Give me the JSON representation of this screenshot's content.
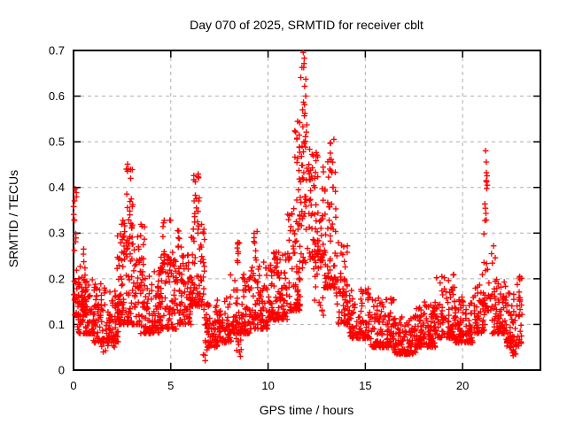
{
  "chart_data": {
    "type": "scatter",
    "title": "Day 070 of 2025, SRMTID for receiver cblt",
    "xlabel": "GPS time / hours",
    "ylabel": "SRMTID / TECUs",
    "xlim": [
      0,
      24
    ],
    "ylim": [
      0,
      0.7
    ],
    "xticks": [
      0,
      5,
      10,
      15,
      20
    ],
    "xtick_labels": [
      "0",
      "5",
      "10",
      "15",
      "20"
    ],
    "yticks": [
      0,
      0.1,
      0.2,
      0.3,
      0.4,
      0.5,
      0.6,
      0.7
    ],
    "ytick_labels": [
      "0",
      "0.1",
      "0.2",
      "0.3",
      "0.4",
      "0.5",
      "0.6",
      "0.7"
    ],
    "grid": "dashed",
    "grid_color": "#b0b0b0",
    "border_color": "#000000",
    "marker": "plus",
    "marker_color": "#ff0000",
    "data_x_range_hours": [
      0.0,
      23.0
    ],
    "notable_peaks": [
      {
        "x": 0.05,
        "y": 0.4
      },
      {
        "x": 2.9,
        "y": 0.46
      },
      {
        "x": 6.3,
        "y": 0.43
      },
      {
        "x": 11.8,
        "y": 0.7
      },
      {
        "x": 13.3,
        "y": 0.5
      },
      {
        "x": 19.5,
        "y": 0.21
      },
      {
        "x": 21.2,
        "y": 0.49
      }
    ],
    "seed": 70,
    "bands_format": "[x_start_hours, x_end_hours, n_points, y_min_TECUs, y_max_TECUs, skew(low=clustered toward y_min, uniform=even spread)]",
    "bands": [
      [
        0.0,
        0.15,
        12,
        0.26,
        0.4,
        "uniform"
      ],
      [
        0.0,
        0.7,
        55,
        0.12,
        0.27,
        "low"
      ],
      [
        0.2,
        1.2,
        100,
        0.08,
        0.2,
        "low"
      ],
      [
        1.0,
        2.3,
        120,
        0.06,
        0.19,
        "low"
      ],
      [
        1.4,
        2.1,
        10,
        0.03,
        0.07,
        "uniform"
      ],
      [
        2.2,
        3.4,
        120,
        0.1,
        0.3,
        "low"
      ],
      [
        2.7,
        3.05,
        26,
        0.26,
        0.46,
        "uniform"
      ],
      [
        2.45,
        2.65,
        10,
        0.24,
        0.35,
        "uniform"
      ],
      [
        3.3,
        3.65,
        18,
        0.16,
        0.35,
        "uniform"
      ],
      [
        3.4,
        4.5,
        100,
        0.08,
        0.24,
        "low"
      ],
      [
        4.45,
        4.7,
        12,
        0.2,
        0.34,
        "uniform"
      ],
      [
        4.4,
        5.3,
        85,
        0.09,
        0.26,
        "low"
      ],
      [
        4.9,
        5.05,
        10,
        0.2,
        0.33,
        "uniform"
      ],
      [
        5.3,
        6.05,
        80,
        0.1,
        0.26,
        "low"
      ],
      [
        5.35,
        5.55,
        8,
        0.22,
        0.31,
        "uniform"
      ],
      [
        6.0,
        6.75,
        70,
        0.14,
        0.32,
        "low"
      ],
      [
        6.15,
        6.5,
        20,
        0.3,
        0.43,
        "uniform"
      ],
      [
        6.7,
        7.4,
        65,
        0.05,
        0.15,
        "low"
      ],
      [
        6.6,
        6.9,
        4,
        0.02,
        0.05,
        "uniform"
      ],
      [
        7.35,
        8.1,
        65,
        0.06,
        0.16,
        "low"
      ],
      [
        8.05,
        9.05,
        95,
        0.08,
        0.21,
        "low"
      ],
      [
        8.35,
        8.65,
        10,
        0.03,
        0.09,
        "uniform"
      ],
      [
        8.4,
        8.55,
        8,
        0.18,
        0.28,
        "uniform"
      ],
      [
        9.0,
        10.0,
        100,
        0.09,
        0.25,
        "low"
      ],
      [
        9.25,
        9.45,
        8,
        0.24,
        0.31,
        "uniform"
      ],
      [
        10.0,
        11.0,
        105,
        0.11,
        0.26,
        "low"
      ],
      [
        10.35,
        10.55,
        8,
        0.2,
        0.28,
        "uniform"
      ],
      [
        11.0,
        11.65,
        75,
        0.13,
        0.35,
        "low"
      ],
      [
        11.3,
        11.65,
        14,
        0.35,
        0.57,
        "uniform"
      ],
      [
        11.6,
        12.15,
        55,
        0.22,
        0.55,
        "uniform"
      ],
      [
        11.68,
        11.95,
        14,
        0.55,
        0.7,
        "uniform"
      ],
      [
        12.1,
        12.85,
        75,
        0.24,
        0.48,
        "low"
      ],
      [
        12.1,
        12.85,
        15,
        0.12,
        0.24,
        "uniform"
      ],
      [
        12.85,
        13.5,
        70,
        0.18,
        0.46,
        "low"
      ],
      [
        13.15,
        13.4,
        8,
        0.44,
        0.51,
        "uniform"
      ],
      [
        13.5,
        14.2,
        70,
        0.1,
        0.28,
        "low"
      ],
      [
        14.2,
        15.2,
        95,
        0.07,
        0.18,
        "low"
      ],
      [
        15.2,
        16.5,
        120,
        0.05,
        0.16,
        "low"
      ],
      [
        16.5,
        17.6,
        115,
        0.035,
        0.12,
        "low"
      ],
      [
        17.6,
        18.6,
        105,
        0.05,
        0.15,
        "low"
      ],
      [
        18.6,
        19.6,
        100,
        0.07,
        0.21,
        "low"
      ],
      [
        19.6,
        20.6,
        95,
        0.06,
        0.16,
        "low"
      ],
      [
        20.6,
        21.15,
        50,
        0.08,
        0.19,
        "low"
      ],
      [
        21.0,
        21.7,
        30,
        0.13,
        0.3,
        "low"
      ],
      [
        21.12,
        21.3,
        13,
        0.3,
        0.49,
        "uniform"
      ],
      [
        21.5,
        22.25,
        70,
        0.08,
        0.2,
        "low"
      ],
      [
        22.25,
        23.05,
        70,
        0.05,
        0.17,
        "low"
      ],
      [
        22.5,
        22.75,
        8,
        0.03,
        0.06,
        "uniform"
      ],
      [
        22.8,
        23.05,
        8,
        0.14,
        0.21,
        "uniform"
      ]
    ]
  }
}
